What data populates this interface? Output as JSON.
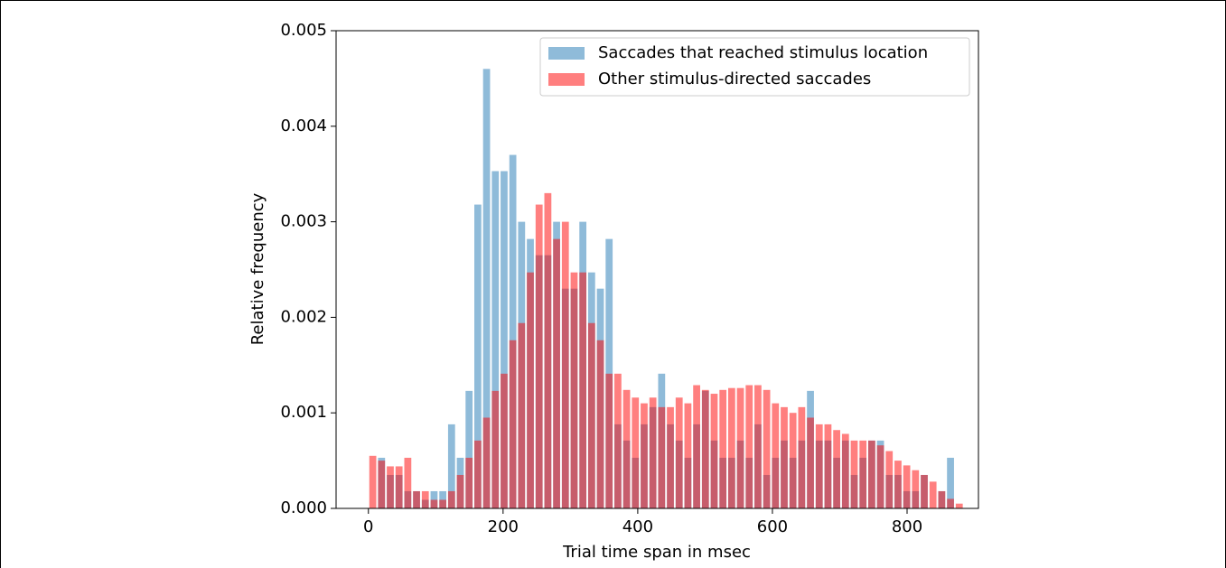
{
  "chart_data": {
    "type": "histogram",
    "xlabel": "Trial time span in msec",
    "ylabel": "Relative frequency",
    "bins": [
      0,
      13,
      26,
      39,
      52,
      65,
      78,
      91,
      104,
      117,
      130,
      143,
      156,
      169,
      182,
      195,
      208,
      221,
      234,
      247,
      260,
      273,
      286,
      299,
      312,
      325,
      338,
      351,
      364,
      377,
      390,
      403,
      416,
      429,
      442,
      455,
      468,
      481,
      494,
      507,
      520,
      533,
      546,
      559,
      572,
      585,
      598,
      611,
      624,
      637,
      650,
      663,
      676,
      689,
      702,
      715,
      728,
      741,
      754,
      767,
      780,
      793,
      806,
      819,
      832,
      845,
      858,
      871,
      884
    ],
    "series": [
      {
        "name": "Saccades that reached stimulus location",
        "color": "#1f77b4",
        "values": [
          0,
          0.00053,
          0.00035,
          0.00035,
          0.00018,
          0.00018,
          9e-05,
          0.00018,
          0.00018,
          0.00088,
          0.00053,
          0.00123,
          0.00318,
          0.0046,
          0.00353,
          0.00353,
          0.0037,
          0.003,
          0.00282,
          0.00265,
          0.00265,
          0.003,
          0.0023,
          0.0023,
          0.003,
          0.00247,
          0.0023,
          0.00282,
          0.00088,
          0.00071,
          0.00053,
          0.00088,
          0.00106,
          0.00141,
          0.00088,
          0.00071,
          0.00053,
          0.00088,
          0.00123,
          0.00071,
          0.00053,
          0.00053,
          0.00071,
          0.00053,
          0.00088,
          0.00035,
          0.00053,
          0.00071,
          0.00053,
          0.00071,
          0.00123,
          0.00071,
          0.00071,
          0.00053,
          0.00071,
          0.00035,
          0.00053,
          0.00071,
          0.00071,
          0.00035,
          0.00035,
          0.00018,
          0.00018,
          0.00035,
          0,
          0.00018,
          0.00053,
          0
        ]
      },
      {
        "name": "Other stimulus-directed saccades",
        "color": "#ff0000",
        "values": [
          0.00055,
          0.0005,
          0.00044,
          0.00044,
          0.00053,
          0.00018,
          0.00018,
          9e-05,
          9e-05,
          0.00018,
          0.00035,
          0.00053,
          0.00071,
          0.00095,
          0.00123,
          0.00141,
          0.00176,
          0.00194,
          0.00247,
          0.00318,
          0.0033,
          0.00282,
          0.003,
          0.00247,
          0.00247,
          0.00194,
          0.00176,
          0.00141,
          0.00141,
          0.00124,
          0.00116,
          0.0011,
          0.00116,
          0.00106,
          0.00106,
          0.00116,
          0.0011,
          0.00129,
          0.00124,
          0.0012,
          0.00124,
          0.00126,
          0.00126,
          0.00129,
          0.00129,
          0.00124,
          0.0011,
          0.00106,
          0.001,
          0.00106,
          0.00095,
          0.00088,
          0.00088,
          0.00082,
          0.00078,
          0.00071,
          0.00071,
          0.00071,
          0.00066,
          0.0006,
          0.0005,
          0.00045,
          0.0004,
          0.00035,
          0.00028,
          0.00018,
          0.0001,
          5e-05
        ]
      }
    ],
    "xlim": [
      -48,
      906
    ],
    "ylim": [
      0,
      0.005
    ],
    "xticks": [
      0,
      200,
      400,
      600,
      800
    ],
    "yticks": [
      {
        "value": 0,
        "label": "0.000"
      },
      {
        "value": 0.001,
        "label": "0.001"
      },
      {
        "value": 0.002,
        "label": "0.002"
      },
      {
        "value": 0.003,
        "label": "0.003"
      },
      {
        "value": 0.004,
        "label": "0.004"
      },
      {
        "value": 0.005,
        "label": "0.005"
      }
    ],
    "legend": "upper right"
  }
}
